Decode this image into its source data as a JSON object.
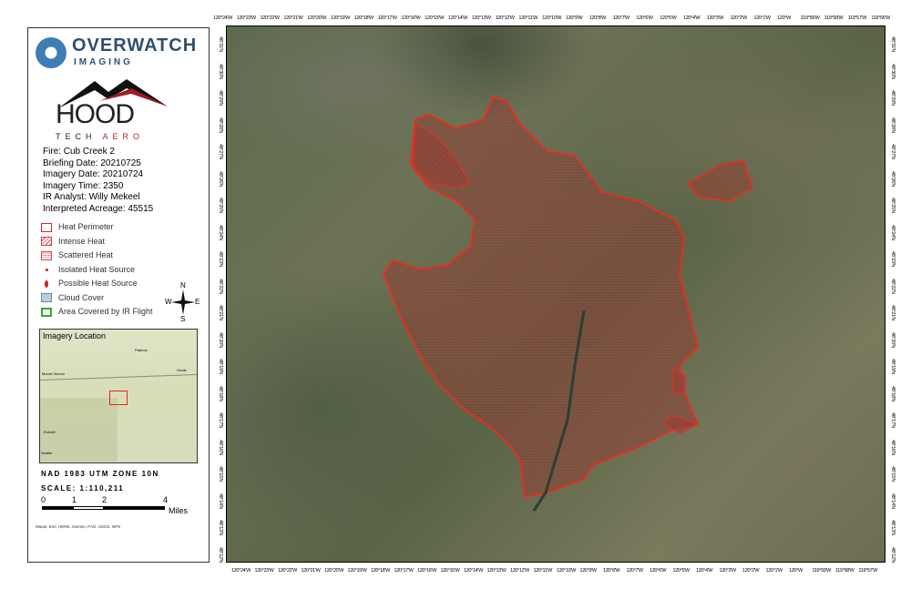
{
  "logos": {
    "overwatch": "OVERWATCH",
    "overwatch_sub": "IMAGING",
    "hood": "HOOD",
    "hood_sub_1": "TECH",
    "hood_sub_2": "AERO"
  },
  "fire_info": [
    "Fire: Cub Creek 2",
    "Briefing Date: 20210725",
    "Imagery Date: 20210724",
    "Imagery Time: 2350",
    "IR Analyst: Willy Mekeel",
    "Interpreted Acreage: 45515"
  ],
  "legend": [
    {
      "label": "Heat Perimeter",
      "icon": "heat-perimeter-swatch"
    },
    {
      "label": "Intense Heat",
      "icon": "intense-heat-swatch"
    },
    {
      "label": "Scattered Heat",
      "icon": "scattered-heat-swatch"
    },
    {
      "label": "Isolated Heat Source",
      "icon": "dot-icon"
    },
    {
      "label": "Possible Heat Source",
      "icon": "diamond-icon"
    },
    {
      "label": "Cloud Cover",
      "icon": "cloud-swatch"
    },
    {
      "label": "Area Covered by IR Flight",
      "icon": "ir-flight-swatch"
    }
  ],
  "compass": {
    "n": "N",
    "s": "S",
    "e": "E",
    "w": "W"
  },
  "inset": {
    "title": "Imagery Location",
    "places": [
      "Pateros",
      "Omak",
      "Mount Vernon",
      "Everett",
      "Seattle"
    ]
  },
  "projection": "NAD 1983 UTM ZONE 10N",
  "scale": "SCALE: 1:110,211",
  "scalebar": {
    "labels": [
      "0",
      "1",
      "2",
      "4"
    ],
    "unit": "Miles"
  },
  "credit": "Maxar, Esri, HERE, Garmin, FAO, USGS, NPS",
  "colors": {
    "perimeter": "#e8261e",
    "hatch": "#d33a2c",
    "panel_border": "#333333"
  },
  "top_ticks": [
    "120°24'W",
    "120°23'W",
    "120°22'W",
    "120°21'W",
    "120°20'W",
    "120°19'W",
    "120°18'W",
    "120°17'W",
    "120°16'W",
    "120°15'W",
    "120°14'W",
    "120°13'W",
    "120°12'W",
    "120°11'W",
    "120°10'W",
    "120°9'W",
    "120°8'W",
    "120°7'W",
    "120°6'W",
    "120°5'W",
    "120°4'W",
    "120°3'W",
    "120°2'W",
    "120°1'W",
    "120°W",
    "119°59'W",
    "119°58'W",
    "119°57'W",
    "119°56'W"
  ],
  "bottom_ticks": [
    "120°24'W",
    "120°23'W",
    "120°22'W",
    "120°21'W",
    "120°20'W",
    "120°19'W",
    "120°18'W",
    "120°17'W",
    "120°16'W",
    "120°15'W",
    "120°14'W",
    "120°13'W",
    "120°12'W",
    "120°11'W",
    "120°10'W",
    "120°9'W",
    "120°8'W",
    "120°7'W",
    "120°6'W",
    "120°5'W",
    "120°4'W",
    "120°3'W",
    "120°2'W",
    "120°1'W",
    "120°W",
    "119°59'W",
    "119°58'W",
    "119°57'W"
  ],
  "side_ticks": [
    "48°31'N",
    "48°30'N",
    "48°29'N",
    "48°28'N",
    "48°27'N",
    "48°26'N",
    "48°25'N",
    "48°24'N",
    "48°23'N",
    "48°22'N",
    "48°21'N",
    "48°20'N",
    "48°19'N",
    "48°18'N",
    "48°17'N",
    "48°16'N",
    "48°15'N",
    "48°14'N",
    "48°13'N",
    "48°12'N"
  ]
}
